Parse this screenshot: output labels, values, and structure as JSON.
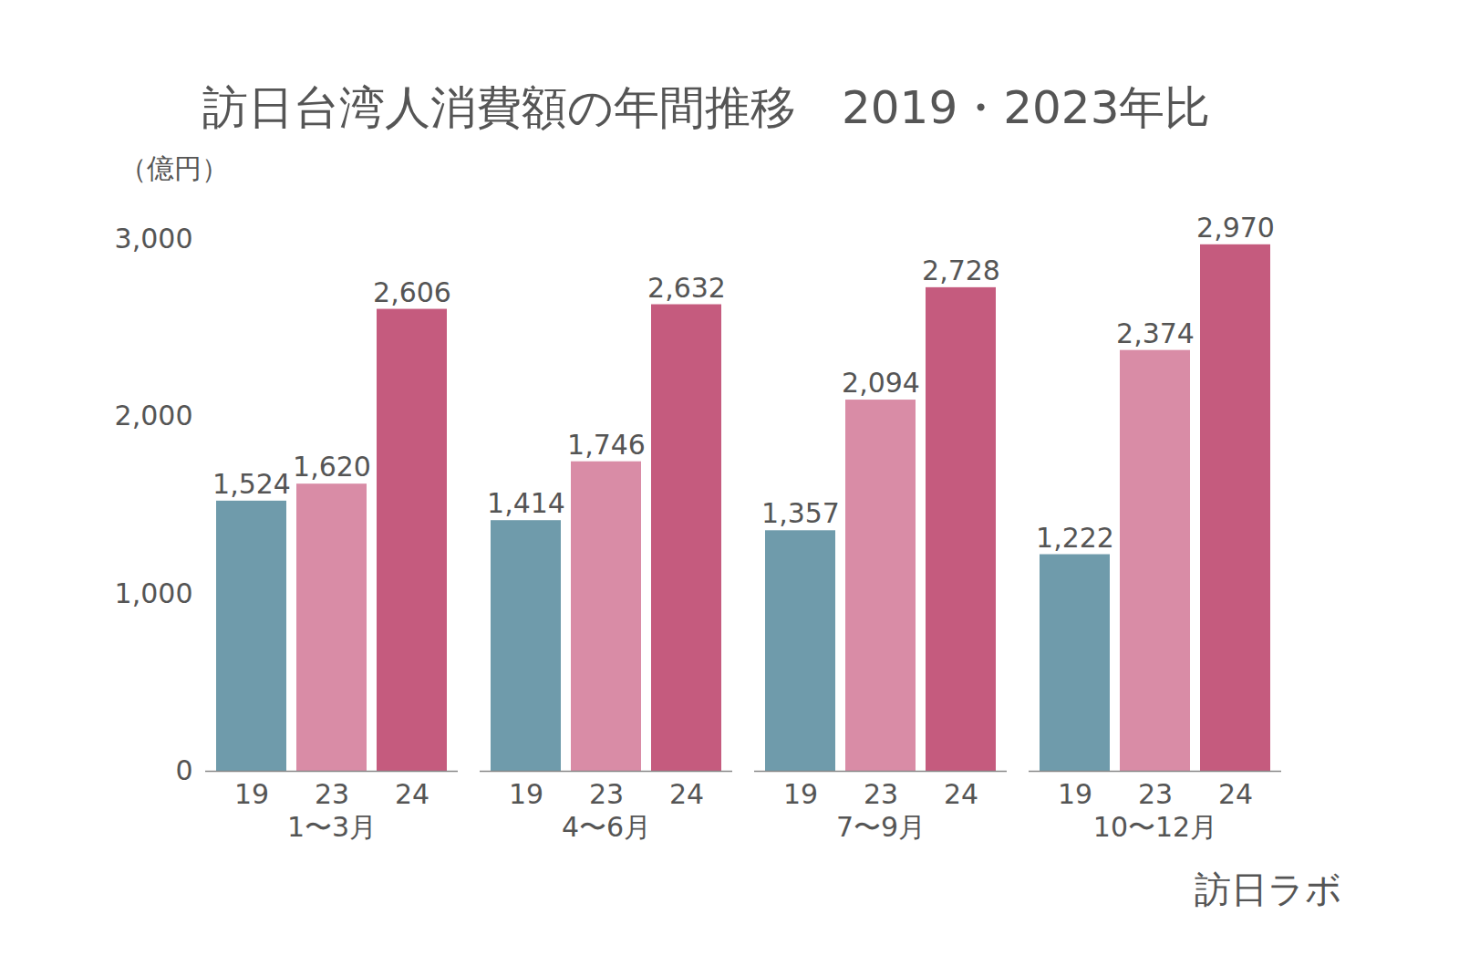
{
  "chart_data": {
    "type": "bar",
    "title": "訪日台湾人消費額の年間推移　2019・2023年比",
    "y_label": "（億円）",
    "source": "訪日ラボ",
    "categories": [
      "1〜3月",
      "4〜6月",
      "7〜9月",
      "10〜12月"
    ],
    "series": [
      {
        "name": "19",
        "color": "#6f9bab",
        "values": [
          1524,
          1414,
          1357,
          1222
        ],
        "value_labels": [
          "1,524",
          "1,414",
          "1,357",
          "1,222"
        ]
      },
      {
        "name": "23",
        "color": "#d98ca6",
        "values": [
          1620,
          1746,
          2094,
          2374
        ],
        "value_labels": [
          "1,620",
          "1,746",
          "2,094",
          "2,374"
        ]
      },
      {
        "name": "24",
        "color": "#c55b7e",
        "values": [
          2606,
          2632,
          2728,
          2970
        ],
        "value_labels": [
          "2,606",
          "2,632",
          "2,728",
          "2,970"
        ]
      }
    ],
    "ylim": [
      0,
      3000
    ],
    "yticks": [
      0,
      {
        "value": 1000,
        "label": "1,000"
      },
      {
        "value": 2000,
        "label": "2,000"
      },
      {
        "value": 3000,
        "label": "3,000"
      }
    ],
    "grid": false,
    "data_labels": true
  }
}
